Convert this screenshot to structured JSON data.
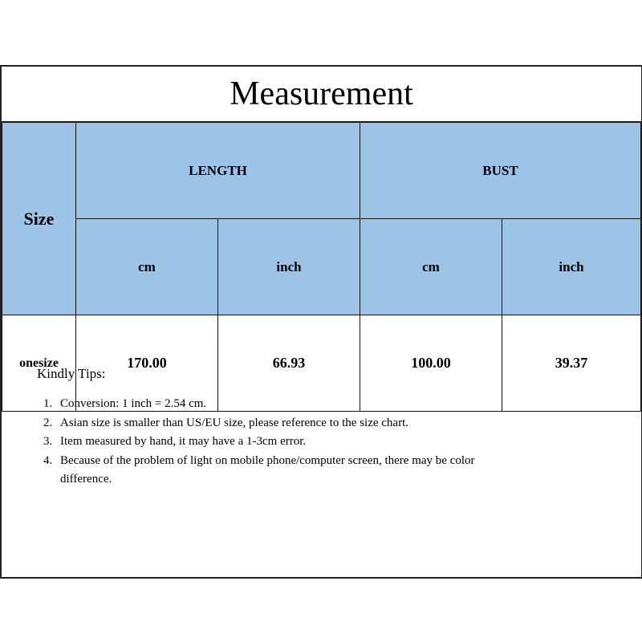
{
  "title": "Measurement",
  "colors": {
    "header_bg": "#9dc3e6"
  },
  "table": {
    "size_header": "Size",
    "groups": [
      "LENGTH",
      "BUST"
    ],
    "units": [
      "cm",
      "inch",
      "cm",
      "inch"
    ],
    "rows": [
      {
        "size": "onesize",
        "values": [
          "170.00",
          "66.93",
          "100.00",
          "39.37"
        ]
      }
    ]
  },
  "tips": {
    "heading": "Kindly Tips:",
    "items": [
      "Conversion: 1 inch = 2.54 cm.",
      "Asian size is smaller than US/EU size, please reference to the size chart.",
      "Item measured by hand, it may have a 1-3cm error.",
      "Because of the problem of light on mobile phone/computer screen, there may be color difference."
    ]
  }
}
